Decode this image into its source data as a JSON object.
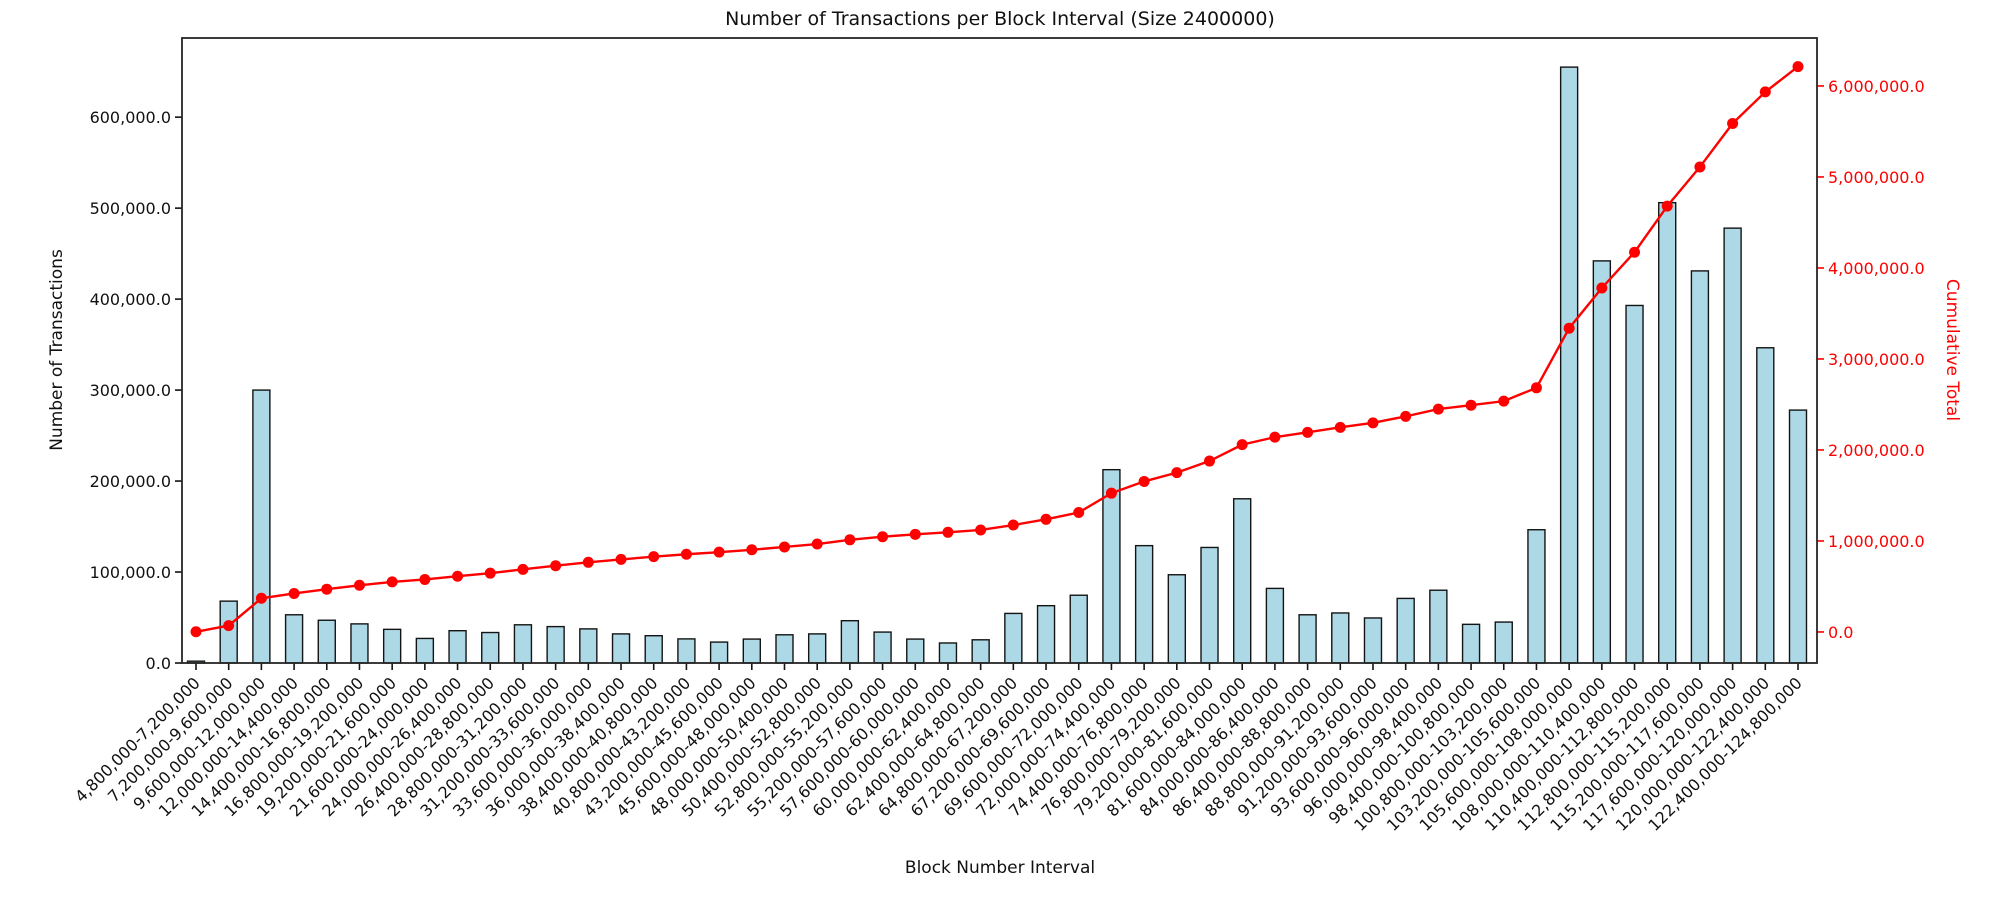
{
  "figure": {
    "title": "Number of Transactions per Block Interval (Size 2400000)",
    "xlabel": "Block Number Interval",
    "ylabel_left": "Number of Transactions",
    "ylabel_right": "Cumulative Total"
  },
  "chart_data": {
    "type": "bar",
    "title": "Number of Transactions per Block Interval (Size 2400000)",
    "xlabel": "Block Number Interval",
    "ylabel": "Number of Transactions",
    "ylabel_secondary": "Cumulative Total",
    "grid": false,
    "legend_position": "none",
    "categories": [
      "4,800,000-7,200,000",
      "7,200,000-9,600,000",
      "9,600,000-12,000,000",
      "12,000,000-14,400,000",
      "14,400,000-16,800,000",
      "16,800,000-19,200,000",
      "19,200,000-21,600,000",
      "21,600,000-24,000,000",
      "24,000,000-26,400,000",
      "26,400,000-28,800,000",
      "28,800,000-31,200,000",
      "31,200,000-33,600,000",
      "33,600,000-36,000,000",
      "36,000,000-38,400,000",
      "38,400,000-40,800,000",
      "40,800,000-43,200,000",
      "43,200,000-45,600,000",
      "45,600,000-48,000,000",
      "48,000,000-50,400,000",
      "50,400,000-52,800,000",
      "52,800,000-55,200,000",
      "55,200,000-57,600,000",
      "57,600,000-60,000,000",
      "60,000,000-62,400,000",
      "62,400,000-64,800,000",
      "64,800,000-67,200,000",
      "67,200,000-69,600,000",
      "69,600,000-72,000,000",
      "72,000,000-74,400,000",
      "74,400,000-76,800,000",
      "76,800,000-79,200,000",
      "79,200,000-81,600,000",
      "81,600,000-84,000,000",
      "84,000,000-86,400,000",
      "86,400,000-88,800,000",
      "88,800,000-91,200,000",
      "91,200,000-93,600,000",
      "93,600,000-96,000,000",
      "96,000,000-98,400,000",
      "98,400,000-100,800,000",
      "100,800,000-103,200,000",
      "103,200,000-105,600,000",
      "105,600,000-108,000,000",
      "108,000,000-110,400,000",
      "110,400,000-112,800,000",
      "112,800,000-115,200,000",
      "115,200,000-117,600,000",
      "117,600,000-120,000,000",
      "120,000,000-122,400,000",
      "122,400,000-124,800,000"
    ],
    "series": [
      {
        "name": "Number of Transactions",
        "type": "bar",
        "color": "#add8e6",
        "edge_color": "#141414",
        "axis": "left",
        "values": [
          2000,
          68000,
          300000,
          53000,
          47000,
          43000,
          37000,
          27000,
          35500,
          33500,
          42000,
          40000,
          37500,
          32000,
          30000,
          26500,
          23000,
          26300,
          31000,
          32000,
          46500,
          34000,
          26300,
          22000,
          25500,
          54500,
          63000,
          74500,
          212500,
          129000,
          97000,
          127000,
          180500,
          82000,
          53000,
          55000,
          49500,
          71000,
          80000,
          42500,
          45000,
          146500,
          655000,
          442000,
          393000,
          506000,
          431000,
          478000,
          346500,
          278000
        ]
      },
      {
        "name": "Cumulative Total",
        "type": "line",
        "color": "#ff0000",
        "marker": "circle",
        "axis": "right",
        "values": [
          2000,
          70000,
          370000,
          423000,
          470000,
          513000,
          550000,
          577000,
          612500,
          646000,
          688000,
          728000,
          765500,
          797500,
          827500,
          854000,
          877000,
          903300,
          934300,
          966300,
          1012800,
          1046800,
          1073100,
          1095100,
          1120600,
          1175100,
          1238100,
          1312600,
          1525100,
          1654100,
          1751100,
          1878100,
          2058600,
          2140600,
          2193600,
          2248600,
          2298100,
          2369100,
          2449100,
          2491600,
          2536600,
          2683100,
          3338100,
          3780100,
          4173100,
          4679100,
          5110100,
          5588100,
          5934600,
          6212600
        ]
      }
    ],
    "left_axis": {
      "min": 0,
      "max": 687000,
      "tick_values": [
        0,
        100000,
        200000,
        300000,
        400000,
        500000,
        600000
      ],
      "tick_labels": [
        "0.0",
        "100,000.0",
        "200,000.0",
        "300,000.0",
        "400,000.0",
        "500,000.0",
        "600,000.0"
      ],
      "color": "#111111"
    },
    "right_axis": {
      "min": -341000,
      "max": 6527000,
      "tick_values": [
        0,
        1000000,
        2000000,
        3000000,
        4000000,
        5000000,
        6000000
      ],
      "tick_labels": [
        "0.0",
        "1,000,000.0",
        "2,000,000.0",
        "3,000,000.0",
        "4,000,000.0",
        "5,000,000.0",
        "6,000,000.0"
      ],
      "color": "#ff0000"
    }
  }
}
